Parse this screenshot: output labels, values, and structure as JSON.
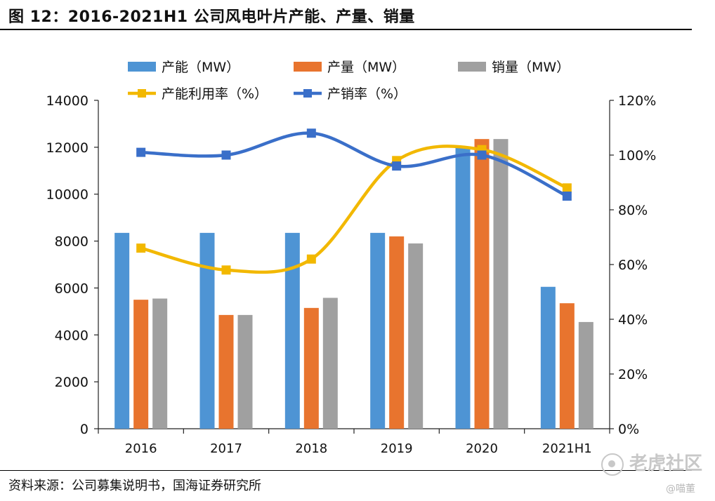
{
  "figure": {
    "title": "图 12：2016-2021H1 公司风电叶片产能、产量、销量",
    "source": "资料来源：公司募集说明书，国海证券研究所",
    "watermark": "老虎社区",
    "handle": "@喵董"
  },
  "chart_data": {
    "type": "bar",
    "title": "2016-2021H1 公司风电叶片产能、产量、销量",
    "categories": [
      "2016",
      "2017",
      "2018",
      "2019",
      "2020",
      "2021H1"
    ],
    "bar_series": [
      {
        "name": "产能（MW）",
        "color": "#4e94d4",
        "values": [
          8350,
          8350,
          8350,
          8350,
          12000,
          6050
        ]
      },
      {
        "name": "产量（MW）",
        "color": "#e8742e",
        "values": [
          5500,
          4850,
          5150,
          8200,
          12350,
          5350
        ]
      },
      {
        "name": "销量（MW）",
        "color": "#a0a0a0",
        "values": [
          5550,
          4850,
          5580,
          7900,
          12350,
          4550
        ]
      }
    ],
    "line_series": [
      {
        "name": "产能利用率（%）",
        "color": "#f2b800",
        "values": [
          66,
          58,
          62,
          98,
          102,
          88
        ]
      },
      {
        "name": "产销率（%）",
        "color": "#3a6fc9",
        "values": [
          101,
          100,
          108,
          96,
          100,
          85
        ]
      }
    ],
    "y_left": {
      "min": 0,
      "max": 14000,
      "ticks": [
        "0",
        "2000",
        "4000",
        "6000",
        "8000",
        "10000",
        "12000",
        "14000"
      ]
    },
    "y_right": {
      "min": 0,
      "max": 120,
      "ticks": [
        "0%",
        "20%",
        "40%",
        "60%",
        "80%",
        "100%",
        "120%"
      ]
    },
    "legend_position": "top"
  }
}
